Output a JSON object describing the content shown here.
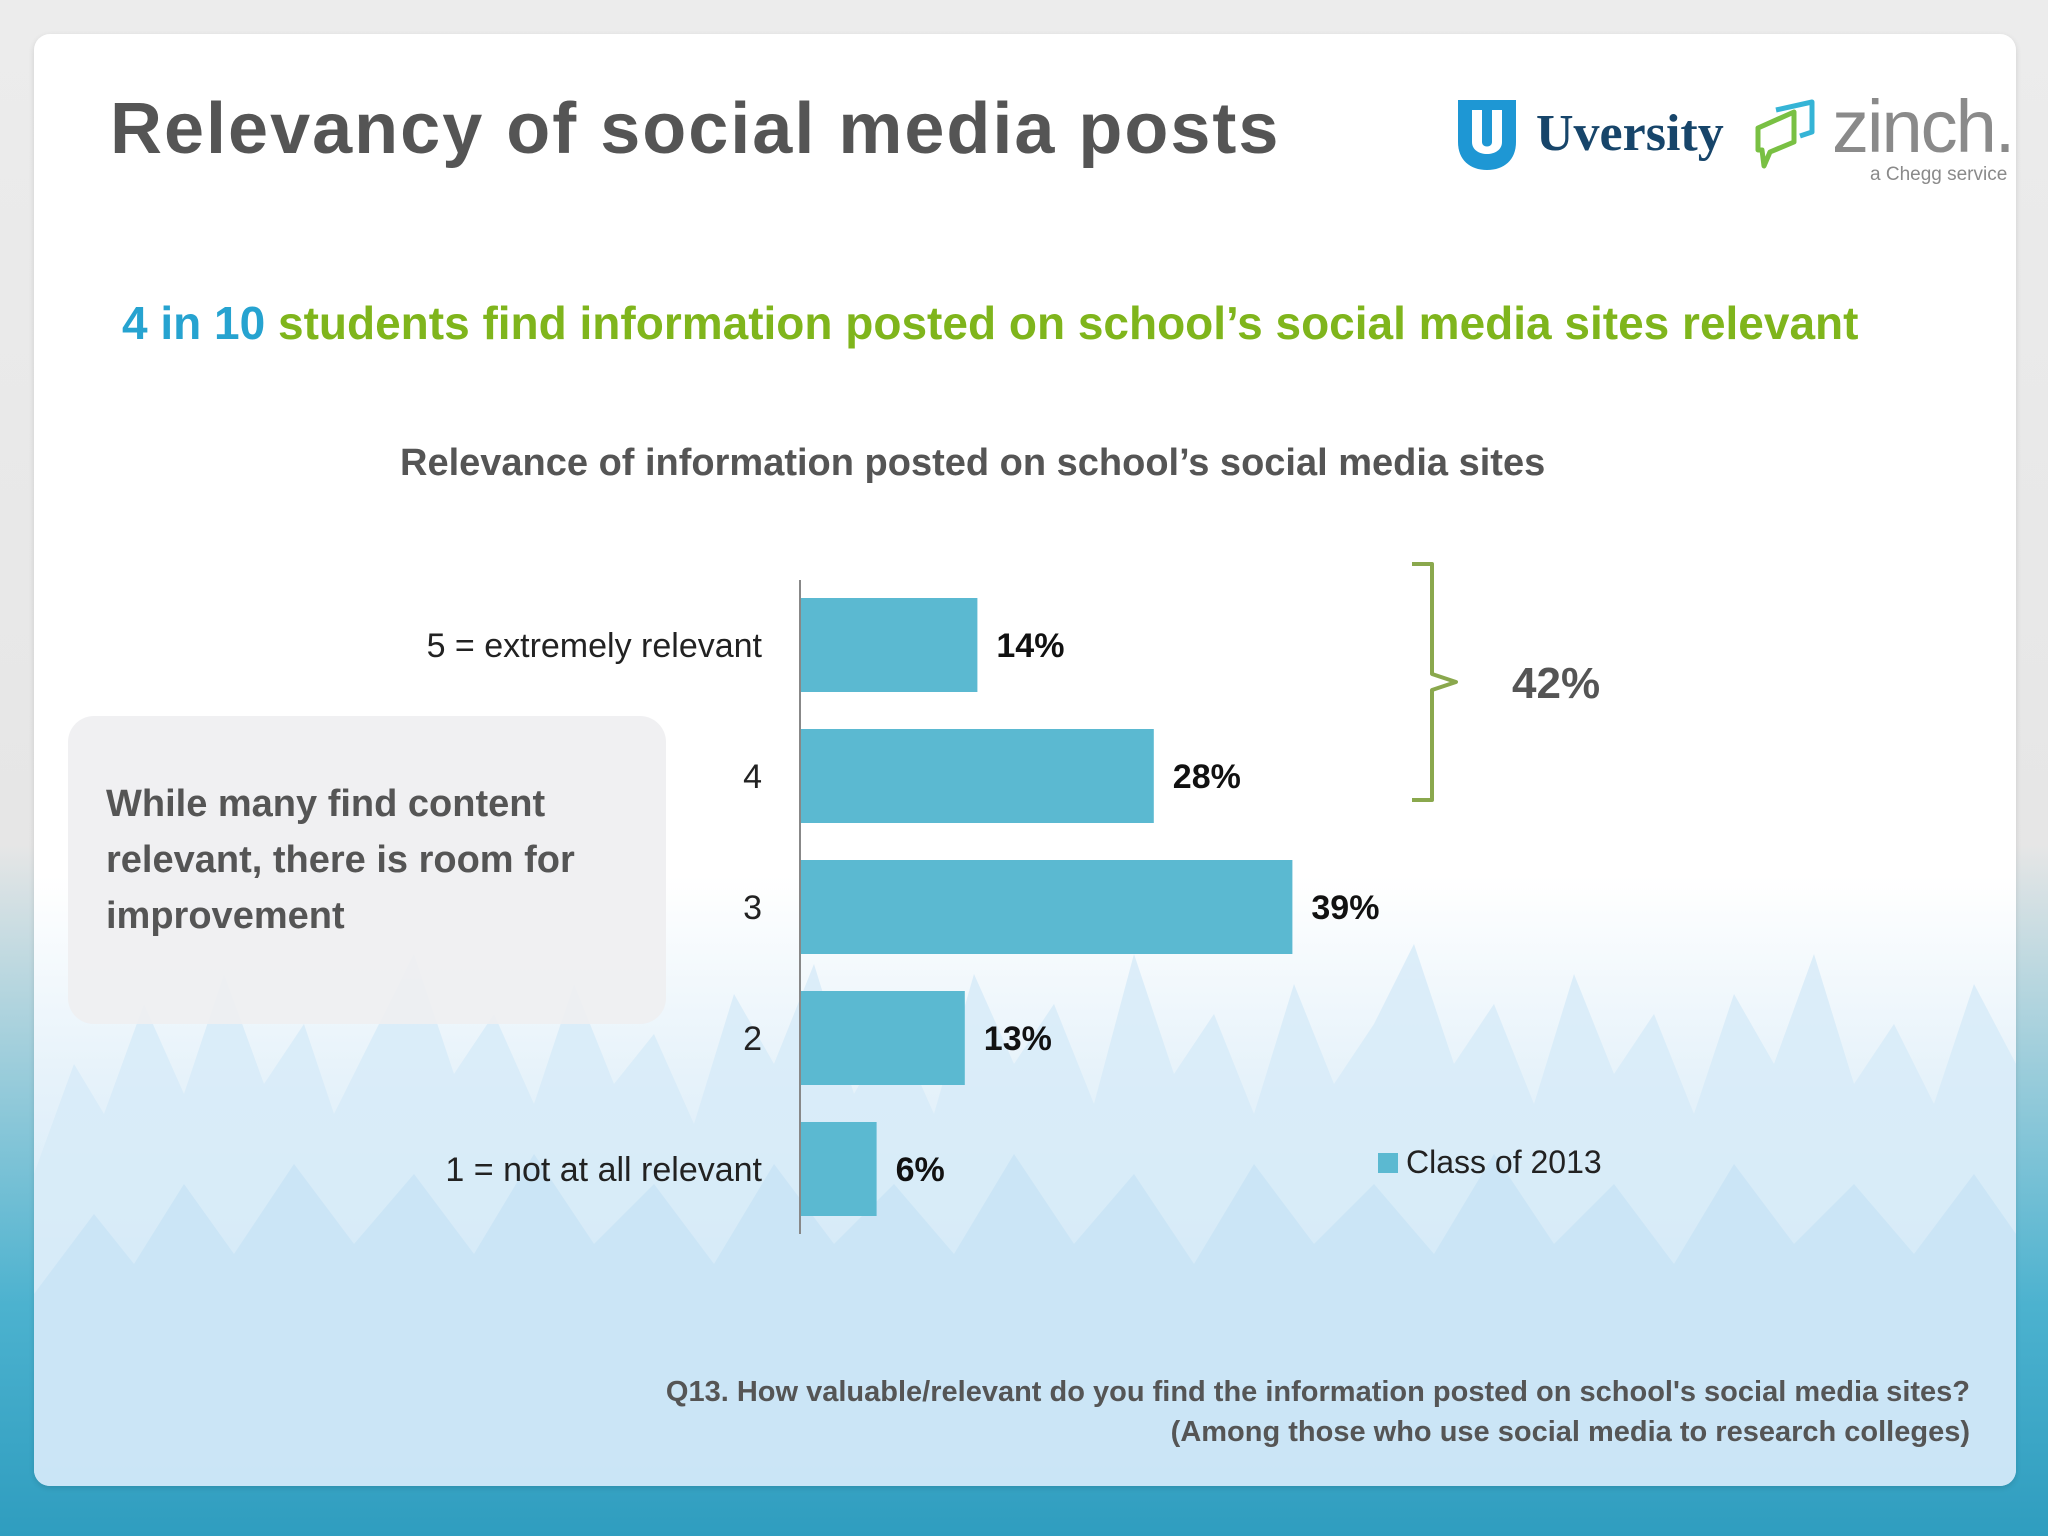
{
  "slide_title": "Relevancy of social media posts",
  "logos": {
    "uversity_name": "Uversity",
    "zinch_name": "zinch.",
    "zinch_tagline": "a Chegg service",
    "colors": {
      "uversity_badge": "#1e97d4",
      "uversity_text": "#17456a",
      "zinch_text": "#8a8a8a",
      "zinch_mark": "#79c043"
    }
  },
  "headline": {
    "highlight": "4 in 10",
    "rest": " students find information posted on school’s social media sites relevant"
  },
  "callout": {
    "text": "While many find content relevant, there is room for improvement"
  },
  "chart_data": {
    "type": "bar",
    "orientation": "horizontal",
    "title": "Relevance of information posted on school’s social media sites",
    "categories": [
      "5 = extremely relevant",
      "4",
      "3",
      "2",
      "1 = not at all relevant"
    ],
    "series": [
      {
        "name": "Class of 2013",
        "values": [
          14,
          28,
          39,
          13,
          6
        ],
        "color": "#5bb9d1"
      }
    ],
    "data_labels": [
      "14%",
      "28%",
      "39%",
      "13%",
      "6%"
    ],
    "grid": false,
    "legend_position": "bottom-right",
    "bracket": {
      "applies_to": [
        "5 = extremely relevant",
        "4"
      ],
      "label": "42%",
      "color": "#8aa84d"
    }
  },
  "footnote": {
    "line1": "Q13. How valuable/relevant do you find the information posted on school's social media sites?",
    "line2": "(Among those who use social media to research colleges)"
  }
}
